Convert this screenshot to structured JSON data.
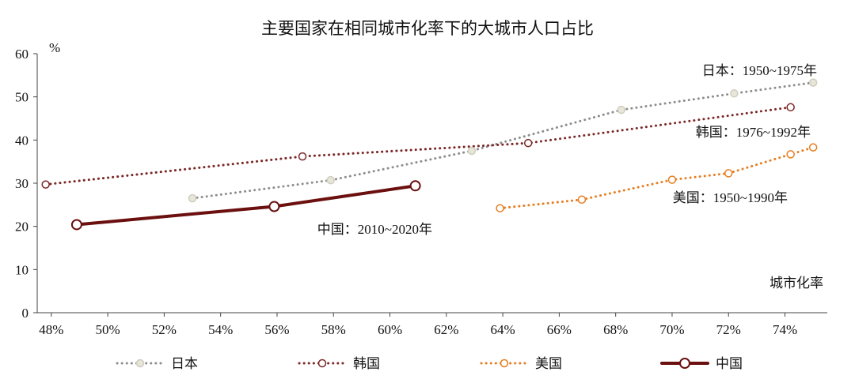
{
  "chart_data": {
    "type": "line",
    "title": "主要国家在相同城市化率下的大城市人口占比",
    "ylabel": "%",
    "xlabel": "城市化率",
    "ylim": [
      0,
      60
    ],
    "xlim": [
      47.5,
      75.5
    ],
    "yticks": [
      0,
      10,
      20,
      30,
      40,
      50,
      60
    ],
    "xticks": [
      48,
      50,
      52,
      54,
      56,
      58,
      60,
      62,
      64,
      66,
      68,
      70,
      72,
      74
    ],
    "xtick_labels": [
      "48%",
      "50%",
      "52%",
      "54%",
      "56%",
      "58%",
      "60%",
      "62%",
      "64%",
      "66%",
      "68%",
      "70%",
      "72%",
      "74%"
    ],
    "grid": false,
    "legend_position": "bottom",
    "series": [
      {
        "name": "日本",
        "color": "#8c8c8c",
        "marker_fill": "#e8e6d8",
        "marker_stroke": "#cfcdbf",
        "style": "dotted",
        "annotation": "日本：1950~1975年",
        "points": [
          [
            53,
            26.5
          ],
          [
            57.9,
            30.7
          ],
          [
            62.9,
            37.5
          ],
          [
            68.2,
            47
          ],
          [
            72.2,
            50.8
          ],
          [
            75,
            53.3
          ]
        ]
      },
      {
        "name": "韩国",
        "color": "#7b2626",
        "marker_fill": "#ffffff",
        "marker_stroke": "#7b2626",
        "style": "dotted",
        "annotation": "韩国：1976~1992年",
        "points": [
          [
            47.8,
            29.7
          ],
          [
            56.9,
            36.2
          ],
          [
            64.9,
            39.3
          ],
          [
            74.2,
            47.6
          ]
        ]
      },
      {
        "name": "美国",
        "color": "#e67e22",
        "marker_fill": "#ffffff",
        "marker_stroke": "#e67e22",
        "style": "dotted",
        "annotation": "美国：1950~1990年",
        "points": [
          [
            63.9,
            24.2
          ],
          [
            66.8,
            26.2
          ],
          [
            70,
            30.8
          ],
          [
            72,
            32.3
          ],
          [
            74.2,
            36.7
          ],
          [
            75,
            38.3
          ]
        ]
      },
      {
        "name": "中国",
        "color": "#6b0f0f",
        "marker_fill": "#ffffff",
        "marker_stroke": "#6b0f0f",
        "style": "solid",
        "annotation": "中国：2010~2020年",
        "points": [
          [
            48.9,
            20.4
          ],
          [
            55.9,
            24.6
          ],
          [
            60.9,
            29.4
          ]
        ]
      }
    ]
  }
}
